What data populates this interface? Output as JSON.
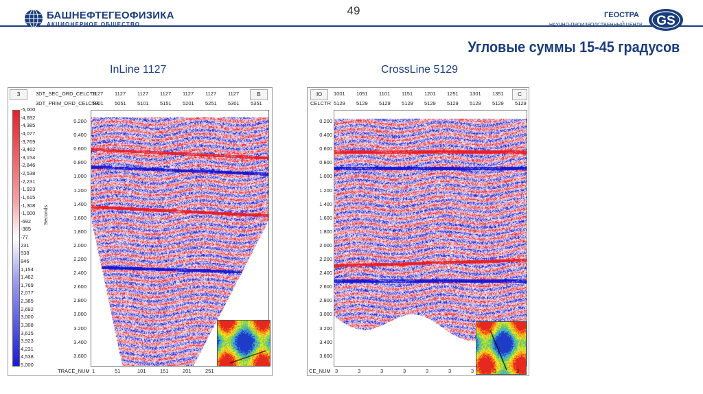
{
  "header": {
    "page_number": "49",
    "company_left": "БАШНЕФТЕГЕОФИЗИКА",
    "company_left_sub": "АКЦИОНЕРНОЕ ОБЩЕСТВО",
    "company_right": "ГЕОСТРА",
    "company_right_sub": "НАУЧНО-ПРОИЗВОДСТВЕННЫЙ ЦЕНТР",
    "company_right_logo": "GS",
    "title": "Угловые суммы 15-45 градусов"
  },
  "colorbar": {
    "values": [
      "-5,000",
      "-4,692",
      "-4,385",
      "-4,077",
      "-3,769",
      "-3,462",
      "-3,154",
      "-2,846",
      "-2,538",
      "-2,231",
      "-1,923",
      "-1,615",
      "-1,308",
      "-1,000",
      "-692",
      "-385",
      "-77",
      "231",
      "538",
      "846",
      "1,154",
      "1,462",
      "1,769",
      "2,077",
      "2,385",
      "2,692",
      "3,000",
      "3,308",
      "3,615",
      "3,923",
      "4,231",
      "4,538",
      "5,000"
    ],
    "colors": {
      "negative": "#e8202a",
      "zero": "#ffffff",
      "positive": "#1a1ad6"
    }
  },
  "left_panel": {
    "caption": "InLine 1127",
    "corner_left": "З",
    "corner_right": "В",
    "row1_label": "3DT_SEC_ORD_CELCTR",
    "row1_values": [
      "1127",
      "1127",
      "1127",
      "1127",
      "1127",
      "1127",
      "1127"
    ],
    "row2_label": "3DT_PRIM_ORD_CELCTR",
    "row2_values": [
      "5001",
      "5051",
      "5101",
      "5151",
      "5201",
      "5251",
      "5301",
      "5351"
    ],
    "y_axis_label": "Seconds",
    "y_ticks": [
      "0.200",
      "0.400",
      "0.600",
      "0.800",
      "1.000",
      "1.200",
      "1.400",
      "1.600",
      "1.800",
      "2.000",
      "2.200",
      "2.400",
      "2.600",
      "2.800",
      "3.000",
      "3.200",
      "3.400",
      "3.600"
    ],
    "x_label": "TRACE_NUM",
    "x_ticks": [
      "1",
      "51",
      "101",
      "151",
      "201",
      "251"
    ]
  },
  "right_panel": {
    "caption": "CrossLine 5129",
    "corner_left": "Ю",
    "corner_right": "С",
    "row1_label": "",
    "row1_values": [
      "1001",
      "1051",
      "1101",
      "1151",
      "1201",
      "1251",
      "1301",
      "1351"
    ],
    "row2_label": "CELCTR",
    "row2_values": [
      "5129",
      "5129",
      "5129",
      "5129",
      "5129",
      "5129",
      "5129",
      "5129",
      "5129"
    ],
    "y_ticks": [
      "0.200",
      "0.400",
      "0.600",
      "0.800",
      "1.000",
      "1.200",
      "1.400",
      "1.600",
      "1.800",
      "2.000",
      "2.200",
      "2.400",
      "2.600",
      "2.800",
      "3.000",
      "3.200",
      "3.400",
      "3.600"
    ],
    "x_label": "CE_NUM",
    "x_ticks": [
      "3",
      "3",
      "3",
      "3",
      "3",
      "3",
      "3",
      "3",
      "3"
    ]
  }
}
